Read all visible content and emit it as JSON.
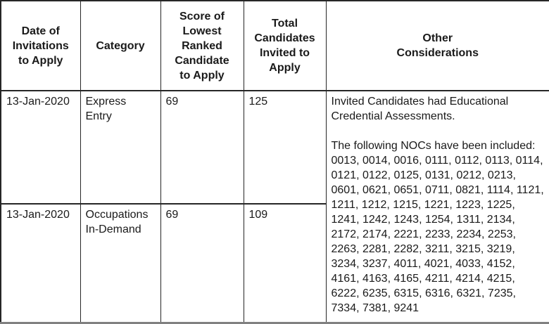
{
  "colors": {
    "background": "#ffffff",
    "text": "#1a1a1a",
    "grid_border": "#262626",
    "bottom_edge": "#808080"
  },
  "table": {
    "headers": [
      "Date of\nInvitations\nto Apply",
      "Category",
      "Score of\nLowest\nRanked\nCandidate\nto Apply",
      "Total\nCandidates\nInvited to\nApply",
      "Other\nConsiderations"
    ],
    "rows": [
      {
        "date": "13-Jan-2020",
        "category": "Express\nEntry",
        "score": "69",
        "total": "125"
      },
      {
        "date": "13-Jan-2020",
        "category": "Occupations\nIn-Demand",
        "score": "69",
        "total": "109"
      }
    ],
    "other_considerations": {
      "paragraph1": "Invited Candidates had Educational Credential Assessments.",
      "paragraph2": "The following NOCs have been included: 0013, 0014, 0016, 0111, 0112, 0113, 0114, 0121, 0122, 0125, 0131, 0212, 0213, 0601, 0621, 0651, 0711, 0821, 1114, 1121, 1211, 1212, 1215, 1221, 1223, 1225, 1241, 1242, 1243, 1254, 1311, 2134, 2172, 2174, 2221, 2233, 2234, 2253, 2263, 2281, 2282, 3211, 3215, 3219, 3234, 3237, 4011, 4021, 4033, 4152, 4161, 4163, 4165, 4211, 4214, 4215, 6222, 6235, 6315, 6316, 6321, 7235, 7334, 7381, 9241"
    }
  }
}
